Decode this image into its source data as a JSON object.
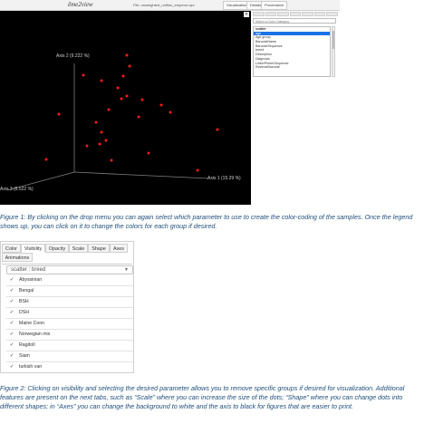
{
  "figure1": {
    "app_logo": "ēme2view",
    "file_name": "File: unweighted_unifrac_emperor.qzv",
    "top_tabs": [
      "Visualization",
      "Details",
      "Provenance"
    ],
    "close_glyph": "×",
    "sidebar_dropdown_placeholder": "Select a Color Category",
    "sidebar_items": [
      {
        "label": "scatter",
        "selected": false,
        "header": true
      },
      {
        "label": "age",
        "selected": true
      },
      {
        "label": "Age group",
        "selected": false
      },
      {
        "label": "BarcodeName",
        "selected": false
      },
      {
        "label": "BarcodeSequence",
        "selected": false
      },
      {
        "label": "breed",
        "selected": false
      },
      {
        "label": "Description",
        "selected": false
      },
      {
        "label": "Diagnosis",
        "selected": false
      },
      {
        "label": "LinkerPrimerSequence",
        "selected": false
      },
      {
        "label": "ReverseBarcode",
        "selected": false
      }
    ],
    "chart_data": {
      "type": "scatter",
      "dimensions": 3,
      "axes": [
        {
          "label": "Axis 1 (15.29 %)"
        },
        {
          "label": "Axis 2 (9.222 %)"
        },
        {
          "label": "Axis 3 (8.522 %)"
        }
      ],
      "background": "#000000",
      "point_color": "#ff1a1a",
      "axis_color": "#7f7f7f",
      "points_px": "computed in script"
    }
  },
  "caption1": "Figure 1: By clicking on the drop menu you can again select which parameter to use to create the color-coding of the samples. Once the legend shows up, you can click on it to change the colors for each group if desired.",
  "figure2": {
    "tabs_row1": [
      "Color",
      "Visibility",
      "Opacity",
      "Scale",
      "Shape",
      "Axes"
    ],
    "tabs_row2": [
      "Animations"
    ],
    "active_tab": "Visibility",
    "dropdown_value": "scatter : breed",
    "dropdown_arrow": "▼",
    "check_glyph": "✓",
    "groups": [
      {
        "label": "Abyssinian",
        "checked": true
      },
      {
        "label": "Bengal",
        "checked": true
      },
      {
        "label": "BSH",
        "checked": true
      },
      {
        "label": "DSH",
        "checked": true
      },
      {
        "label": "Maine Coon",
        "checked": true
      },
      {
        "label": "Norwegian mix",
        "checked": true
      },
      {
        "label": "Ragdoll",
        "checked": true
      },
      {
        "label": "Siam",
        "checked": true
      },
      {
        "label": "turkish van",
        "checked": true
      }
    ]
  },
  "caption2": "Figure 2: Clicking on visibility and selecting the desired parameter allows you to remove specific groups if desired for visualization. Additional features are present on the next tabs, such as “Scale” where you can increase the size of the dots; “Shape” where you can change dots into different shapes; in “Axes” you can change the background to white and the axis to black for figures that are easier to print."
}
